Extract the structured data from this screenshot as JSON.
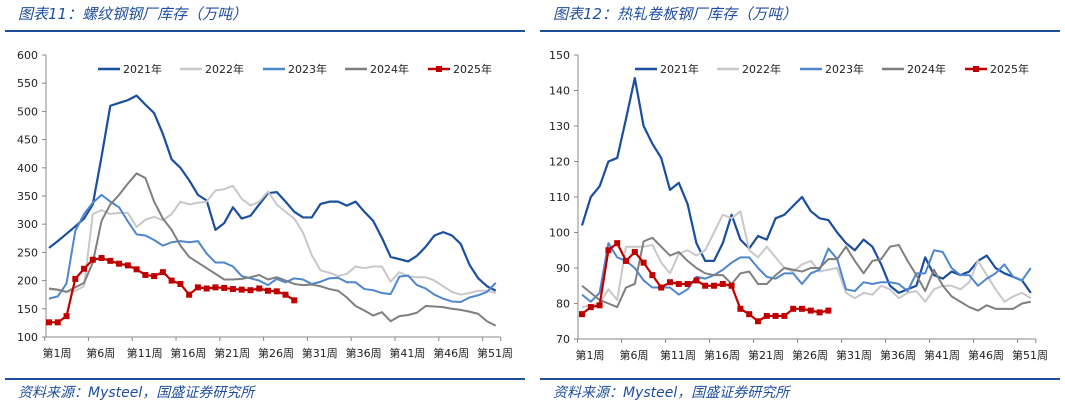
{
  "colors": {
    "2021年": "#1a4f9e",
    "2022年": "#c8c8c8",
    "2023年": "#4f86cc",
    "2024年": "#7f7f7f",
    "2025年": "#c00000",
    "accent": "#1f4e9c"
  },
  "chart_data": [
    {
      "type": "line",
      "title": "图表11：螺纹钢钢厂库存（万吨）",
      "source": "资料来源：Mysteel，国盛证券研究所",
      "ylim": [
        100,
        600
      ],
      "yticks": [
        100,
        150,
        200,
        250,
        300,
        350,
        400,
        450,
        500,
        550,
        600
      ],
      "xticks": [
        "第1周",
        "第6周",
        "第11周",
        "第16周",
        "第21周",
        "第26周",
        "第31周",
        "第36周",
        "第41周",
        "第46周",
        "第51周"
      ],
      "legend_position": "top",
      "series": [
        {
          "name": "2021年",
          "values": [
            258,
            270,
            283,
            296,
            310,
            335,
            420,
            510,
            515,
            520,
            528,
            512,
            497,
            460,
            415,
            400,
            378,
            352,
            342,
            290,
            302,
            330,
            310,
            315,
            335,
            355,
            357,
            340,
            322,
            312,
            312,
            336,
            340,
            340,
            333,
            340,
            322,
            306,
            276,
            242,
            238,
            234,
            244,
            260,
            280,
            286,
            280,
            265,
            228,
            204,
            190,
            182
          ]
        },
        {
          "name": "2022年",
          "values": [
            185,
            183,
            180,
            182,
            190,
            318,
            325,
            318,
            320,
            320,
            295,
            308,
            313,
            307,
            318,
            340,
            335,
            338,
            340,
            360,
            362,
            368,
            345,
            333,
            340,
            358,
            335,
            322,
            310,
            285,
            245,
            218,
            214,
            208,
            212,
            225,
            222,
            225,
            225,
            198,
            215,
            207,
            206,
            206,
            200,
            190,
            180,
            175,
            178,
            182,
            182,
            178
          ]
        },
        {
          "name": "2023年",
          "values": [
            168,
            172,
            195,
            288,
            318,
            338,
            352,
            340,
            330,
            305,
            282,
            280,
            272,
            262,
            268,
            270,
            268,
            270,
            248,
            232,
            232,
            225,
            208,
            204,
            200,
            192,
            203,
            197,
            204,
            202,
            194,
            198,
            204,
            205,
            197,
            197,
            185,
            183,
            178,
            176,
            207,
            209,
            192,
            186,
            175,
            168,
            163,
            162,
            170,
            174,
            180,
            196
          ]
        },
        {
          "name": "2024年",
          "values": [
            186,
            184,
            180,
            188,
            196,
            232,
            306,
            335,
            352,
            372,
            390,
            382,
            340,
            310,
            290,
            262,
            242,
            232,
            222,
            212,
            202,
            202,
            203,
            206,
            210,
            202,
            206,
            200,
            194,
            192,
            193,
            190,
            185,
            182,
            170,
            155,
            147,
            138,
            144,
            128,
            137,
            139,
            143,
            155,
            154,
            153,
            150,
            148,
            145,
            141,
            128,
            120
          ]
        },
        {
          "name": "2025年",
          "values": [
            126,
            126,
            137,
            203,
            221,
            237,
            240,
            235,
            230,
            227,
            220,
            210,
            208,
            215,
            200,
            194,
            175,
            188,
            186,
            188,
            187,
            185,
            184,
            183,
            186,
            182,
            181,
            175,
            165
          ]
        }
      ]
    },
    {
      "type": "line",
      "title": "图表12：热轧卷板钢厂库存（万吨）",
      "source": "资料来源：Mysteel，国盛证券研究所",
      "ylim": [
        70,
        150
      ],
      "yticks": [
        70,
        80,
        90,
        100,
        110,
        120,
        130,
        140,
        150
      ],
      "xticks": [
        "第1周",
        "第6周",
        "第11周",
        "第16周",
        "第21周",
        "第26周",
        "第31周",
        "第36周",
        "第41周",
        "第46周",
        "第51周"
      ],
      "legend_position": "top",
      "series": [
        {
          "name": "2021年",
          "values": [
            102,
            110,
            113,
            120,
            121,
            132,
            143.5,
            130,
            125,
            121,
            112,
            114,
            108,
            97,
            92,
            92,
            97,
            105,
            98,
            95.5,
            99,
            98,
            104,
            105,
            107.5,
            110,
            106,
            104,
            103.5,
            100,
            97,
            95,
            98,
            96,
            91,
            85,
            83,
            84,
            85,
            93,
            88,
            87,
            89,
            88,
            89,
            92,
            93.5,
            90,
            88.5,
            87.5,
            86.5,
            83
          ]
        },
        {
          "name": "2022年",
          "values": [
            79,
            79.5,
            80,
            84,
            81,
            96,
            96,
            96,
            96.5,
            91.5,
            88.5,
            94,
            95,
            93.5,
            95,
            100,
            105,
            104,
            106,
            95,
            93,
            96,
            93,
            90,
            89,
            91,
            92,
            89,
            89.5,
            90,
            83,
            81.5,
            83,
            82.5,
            85,
            84,
            81.5,
            83,
            83.5,
            80.5,
            84,
            85,
            85,
            84,
            86,
            92,
            88,
            84,
            80.5,
            82,
            83,
            81.5
          ]
        },
        {
          "name": "2023年",
          "values": [
            82.5,
            80.5,
            83,
            97,
            93,
            92,
            90,
            86.5,
            84.5,
            84.5,
            84.5,
            82.5,
            84,
            87.5,
            87,
            88,
            89.5,
            91.5,
            93,
            93,
            90,
            87.5,
            87,
            88.5,
            88.5,
            85.5,
            88.5,
            89.5,
            95.5,
            92.5,
            84,
            83.5,
            86,
            85.5,
            86,
            86,
            85.5,
            83.5,
            88.5,
            88.5,
            95,
            94.5,
            90,
            88,
            88,
            85,
            87,
            88.5,
            91,
            87.5,
            86.5,
            90
          ]
        },
        {
          "name": "2024年",
          "values": [
            85,
            83,
            81,
            80,
            79,
            84.5,
            85.5,
            97.5,
            98.5,
            96,
            93.5,
            94.5,
            92,
            90,
            88.5,
            88,
            88,
            85.5,
            88.5,
            89,
            85.5,
            85.5,
            88,
            90,
            89.5,
            89,
            90,
            90,
            92.5,
            92.5,
            96,
            92,
            88.5,
            92,
            92.5,
            96,
            96.5,
            92,
            88,
            83.5,
            89.5,
            85,
            82,
            80.5,
            79,
            78,
            79.5,
            78.5,
            78.5,
            78.5,
            80,
            80.5
          ]
        },
        {
          "name": "2025年",
          "values": [
            77,
            79,
            79.5,
            95,
            97,
            92,
            94.5,
            91.5,
            88,
            84.5,
            86,
            85.5,
            85.5,
            86.5,
            85,
            85,
            85.5,
            85,
            78.5,
            77,
            75,
            76.5,
            76.5,
            76.5,
            78.5,
            78.5,
            78,
            77.5,
            78
          ]
        }
      ]
    }
  ]
}
